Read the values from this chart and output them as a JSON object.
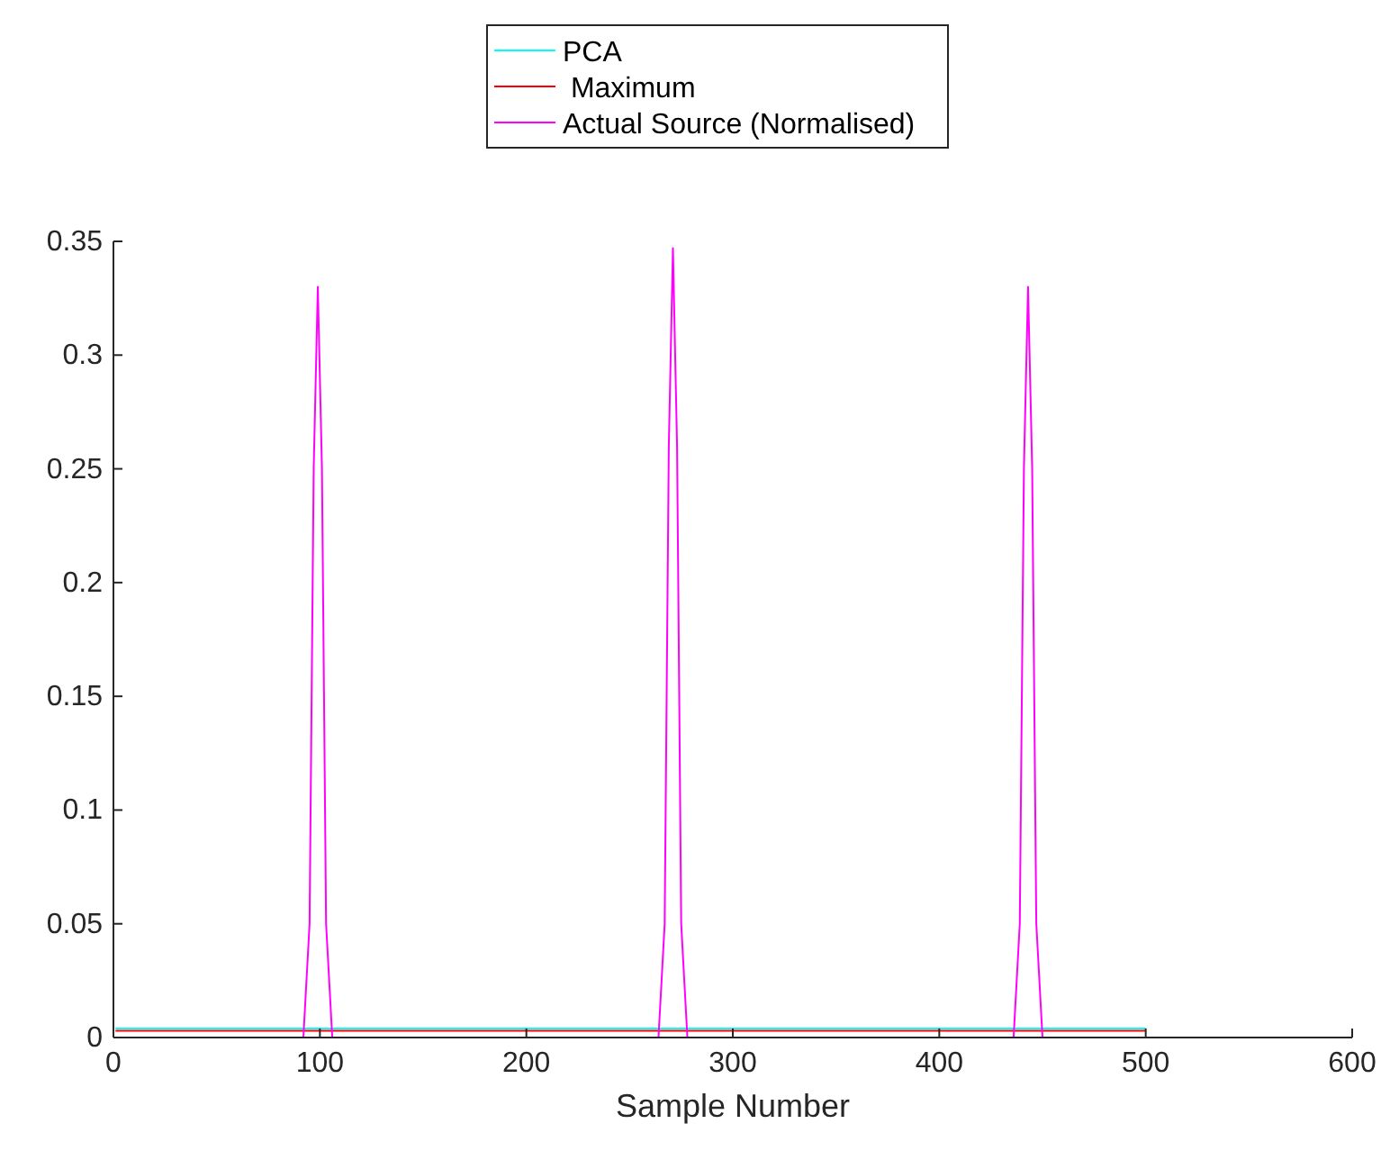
{
  "chart_data": {
    "type": "line",
    "xlabel": "Sample Number",
    "xlim": [
      0,
      600
    ],
    "xticks": [
      0,
      100,
      200,
      300,
      400,
      500,
      600
    ],
    "ylim": [
      0,
      0.35
    ],
    "yticks": [
      0,
      0.05,
      0.1,
      0.15,
      0.2,
      0.25,
      0.3,
      0.35
    ],
    "grid": false,
    "legend": "top",
    "line_style": "solid",
    "series": [
      {
        "name": "PCA",
        "color": "#00ffff",
        "x": [
          1,
          500
        ],
        "values": [
          0.004,
          0.004
        ]
      },
      {
        "name": " Maximum",
        "color": "#ff0000",
        "x": [
          1,
          500
        ],
        "values": [
          0.003,
          0.003
        ]
      },
      {
        "name": "Actual Source (Normalised)",
        "color": "#ff00ff",
        "x": [
          1,
          92,
          95,
          97,
          99,
          101,
          103,
          106,
          264,
          267,
          269,
          271,
          273,
          275,
          278,
          436,
          439,
          441,
          443,
          445,
          447,
          450
        ],
        "values": [
          0,
          0,
          0.05,
          0.25,
          0.33,
          0.25,
          0.05,
          0,
          0,
          0.05,
          0.26,
          0.347,
          0.26,
          0.05,
          0,
          0,
          0.05,
          0.25,
          0.33,
          0.25,
          0.05,
          0
        ]
      }
    ]
  }
}
